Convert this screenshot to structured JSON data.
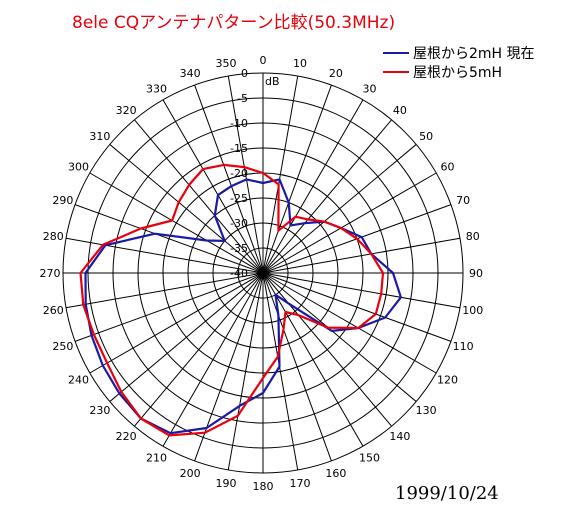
{
  "chart_data": {
    "type": "polar",
    "title": "8ele  CQアンテナパターン比較(50.3MHz)",
    "date": "1999/10/24",
    "radial_unit": "dB",
    "radial_range": [
      -40,
      0
    ],
    "radial_ticks": [
      0,
      -5,
      -10,
      -15,
      -20,
      -25,
      -30,
      -35,
      -40
    ],
    "radial_tick_labels": [
      "0",
      "-5",
      "-10",
      "-15",
      "-20",
      "-25",
      "-30",
      "-35",
      "-40"
    ],
    "angle_ticks": [
      0,
      10,
      20,
      30,
      40,
      50,
      60,
      70,
      80,
      90,
      100,
      110,
      120,
      130,
      140,
      150,
      160,
      170,
      180,
      190,
      200,
      210,
      220,
      230,
      240,
      250,
      260,
      270,
      280,
      290,
      300,
      310,
      320,
      330,
      340,
      350
    ],
    "angle_tick_labels": [
      "0",
      "10",
      "20",
      "30",
      "40",
      "50",
      "60",
      "70",
      "80",
      "90",
      "100",
      "110",
      "120",
      "130",
      "140",
      "150",
      "160",
      "170",
      "180",
      "190",
      "200",
      "210",
      "220",
      "230",
      "240",
      "250",
      "260",
      "270",
      "280",
      "290",
      "300",
      "310",
      "320",
      "330",
      "340",
      "350"
    ],
    "legend_position": "top-right",
    "series": [
      {
        "name": "屋根から2mH  現在",
        "color": "#1a1aa6",
        "angles": [
          0,
          10,
          20,
          30,
          40,
          50,
          60,
          70,
          80,
          90,
          100,
          110,
          120,
          130,
          140,
          150,
          160,
          170,
          180,
          190,
          200,
          210,
          220,
          230,
          240,
          250,
          260,
          270,
          280,
          290,
          300,
          310,
          320,
          330,
          340,
          350,
          360
        ],
        "values": [
          -22,
          -21,
          -25,
          -29,
          -27,
          -24,
          -22,
          -19,
          -18,
          -14,
          -12,
          -14,
          -18,
          -22,
          -32,
          -35,
          -31,
          -21,
          -16,
          -13,
          -7,
          -3,
          -2,
          -2.5,
          -3,
          -3.5,
          -4,
          -4.5,
          -8,
          -17,
          -27,
          -30,
          -25,
          -22,
          -21.5,
          -21,
          -22
        ]
      },
      {
        "name": "屋根から5mH",
        "color": "#e8000c",
        "angles": [
          0,
          10,
          20,
          30,
          40,
          50,
          60,
          70,
          80,
          90,
          100,
          110,
          120,
          130,
          140,
          150,
          160,
          170,
          180,
          190,
          200,
          210,
          220,
          230,
          240,
          250,
          260,
          270,
          280,
          290,
          300,
          310,
          320,
          330,
          340,
          350,
          360
        ],
        "values": [
          -20,
          -22,
          -31,
          -27,
          -26,
          -24,
          -22,
          -20,
          -18,
          -16,
          -16,
          -16,
          -18,
          -23,
          -29,
          -31,
          -28,
          -23,
          -19,
          -11,
          -6,
          -2.5,
          -2,
          -3,
          -4,
          -4,
          -3.5,
          -3.5,
          -7.5,
          -14,
          -19,
          -18,
          -17,
          -16,
          -17,
          -18.5,
          -20
        ]
      }
    ]
  }
}
